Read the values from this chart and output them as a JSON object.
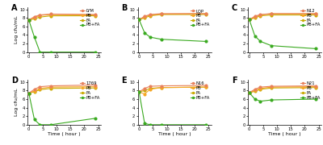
{
  "subplots": [
    {
      "label": "A",
      "strain": "LYM",
      "times": [
        0,
        2,
        4,
        8,
        24
      ],
      "lym": [
        7.5,
        8.3,
        8.7,
        8.9,
        8.8
      ],
      "pb": [
        7.5,
        8.1,
        8.6,
        8.8,
        8.7
      ],
      "fa": [
        7.5,
        7.8,
        8.2,
        8.5,
        8.5
      ],
      "pbfa": [
        7.5,
        3.5,
        0.0,
        0.0,
        0.0
      ]
    },
    {
      "label": "B",
      "strain": "LQP",
      "times": [
        0,
        2,
        4,
        8,
        24
      ],
      "lym": [
        7.6,
        8.4,
        8.8,
        9.0,
        9.0
      ],
      "pb": [
        7.6,
        8.2,
        8.7,
        8.9,
        9.0
      ],
      "fa": [
        7.6,
        8.0,
        8.5,
        8.8,
        8.8
      ],
      "pbfa": [
        7.6,
        4.5,
        3.5,
        3.0,
        2.5
      ]
    },
    {
      "label": "C",
      "strain": "N12",
      "times": [
        0,
        2,
        4,
        8,
        24
      ],
      "lym": [
        7.6,
        8.4,
        8.8,
        9.0,
        9.0
      ],
      "pb": [
        7.6,
        8.2,
        8.7,
        9.0,
        9.0
      ],
      "fa": [
        7.6,
        8.0,
        8.5,
        8.7,
        8.7
      ],
      "pbfa": [
        7.6,
        3.8,
        2.5,
        1.5,
        0.8
      ]
    },
    {
      "label": "D",
      "strain": "1769",
      "times": [
        0,
        2,
        4,
        8,
        24
      ],
      "lym": [
        7.4,
        8.3,
        8.9,
        9.1,
        9.3
      ],
      "pb": [
        7.4,
        7.9,
        8.5,
        8.8,
        8.9
      ],
      "fa": [
        7.4,
        7.7,
        8.2,
        8.5,
        8.6
      ],
      "pbfa": [
        7.4,
        1.2,
        0.0,
        0.0,
        1.5
      ]
    },
    {
      "label": "E",
      "strain": "N16",
      "times": [
        0,
        2,
        4,
        8,
        24
      ],
      "lym": [
        7.7,
        8.5,
        9.0,
        9.1,
        9.2
      ],
      "pb": [
        7.7,
        7.2,
        8.3,
        8.7,
        8.8
      ],
      "fa": [
        7.7,
        8.0,
        8.5,
        8.7,
        8.8
      ],
      "pbfa": [
        7.7,
        0.3,
        0.0,
        0.0,
        0.0
      ]
    },
    {
      "label": "F",
      "strain": "N21",
      "times": [
        0,
        2,
        4,
        8,
        24
      ],
      "lym": [
        7.5,
        8.3,
        8.8,
        9.0,
        9.1
      ],
      "pb": [
        7.5,
        8.0,
        8.5,
        8.8,
        8.9
      ],
      "fa": [
        7.5,
        7.8,
        8.3,
        8.6,
        8.7
      ],
      "pbfa": [
        7.5,
        6.0,
        5.5,
        5.8,
        6.0
      ]
    }
  ],
  "colors": {
    "strain": "#E8805A",
    "pb": "#F5A623",
    "fa": "#C8AA00",
    "pbfa": "#3AAA20"
  },
  "ylim": [
    0,
    10.5
  ],
  "yticks": [
    0,
    2,
    4,
    6,
    8,
    10
  ],
  "xlim": [
    -0.5,
    26
  ],
  "xticks": [
    0,
    5,
    10,
    15,
    20,
    25
  ],
  "xlabel": "Time ( hour )",
  "ylabel": "Log cfu/mL",
  "marker": "o",
  "markersize": 2.0,
  "linewidth": 0.8,
  "label_fontsize": 5.5,
  "tick_fontsize": 3.8,
  "legend_fontsize": 3.8,
  "axis_label_fontsize": 4.5
}
